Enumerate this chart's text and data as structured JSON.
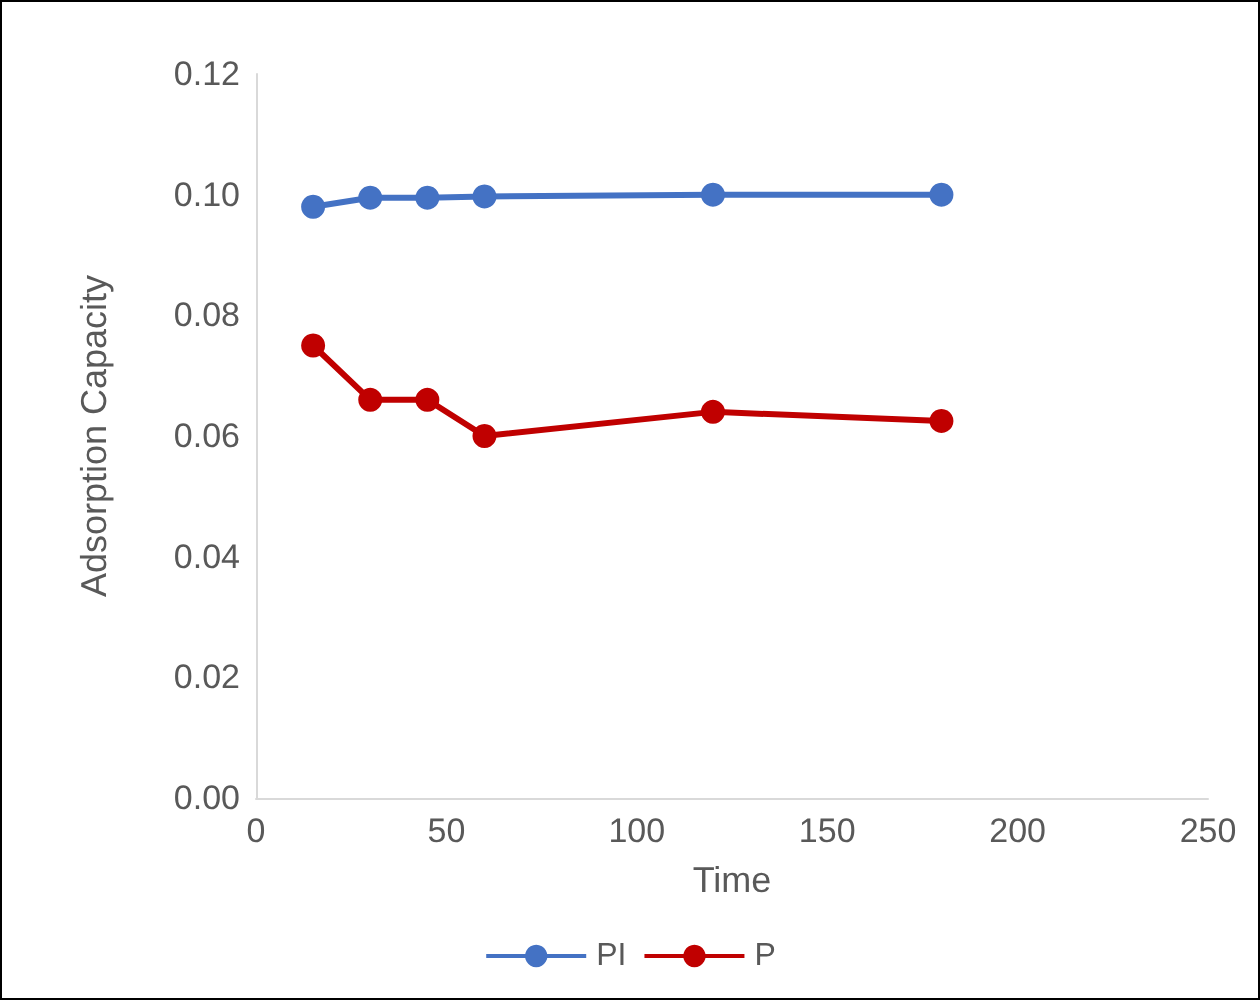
{
  "chart_data": {
    "type": "line",
    "xlabel": "Time",
    "ylabel": "Adsorption Capacity",
    "x": [
      15,
      30,
      45,
      60,
      120,
      180
    ],
    "series": [
      {
        "name": "PI",
        "color": "#4472c4",
        "values": [
          0.098,
          0.0995,
          0.0995,
          0.0997,
          0.1,
          0.1
        ]
      },
      {
        "name": "P",
        "color": "#c00000",
        "values": [
          0.075,
          0.066,
          0.066,
          0.06,
          0.064,
          0.0625
        ]
      }
    ],
    "xlim": [
      0,
      250
    ],
    "xticks": [
      0,
      50,
      100,
      150,
      200,
      250
    ],
    "ylim": [
      0,
      0.12
    ],
    "yticks": [
      {
        "value": 0,
        "label": "0.00"
      },
      {
        "value": 0.02,
        "label": "0.02"
      },
      {
        "value": 0.04,
        "label": "0.04"
      },
      {
        "value": 0.06,
        "label": "0.06"
      },
      {
        "value": 0.08,
        "label": "0.08"
      },
      {
        "value": 0.1,
        "label": "0.10"
      },
      {
        "value": 0.12,
        "label": "0.12"
      }
    ],
    "grid": false,
    "legend": "bottom",
    "marker": "circle",
    "line_style": "solid"
  }
}
